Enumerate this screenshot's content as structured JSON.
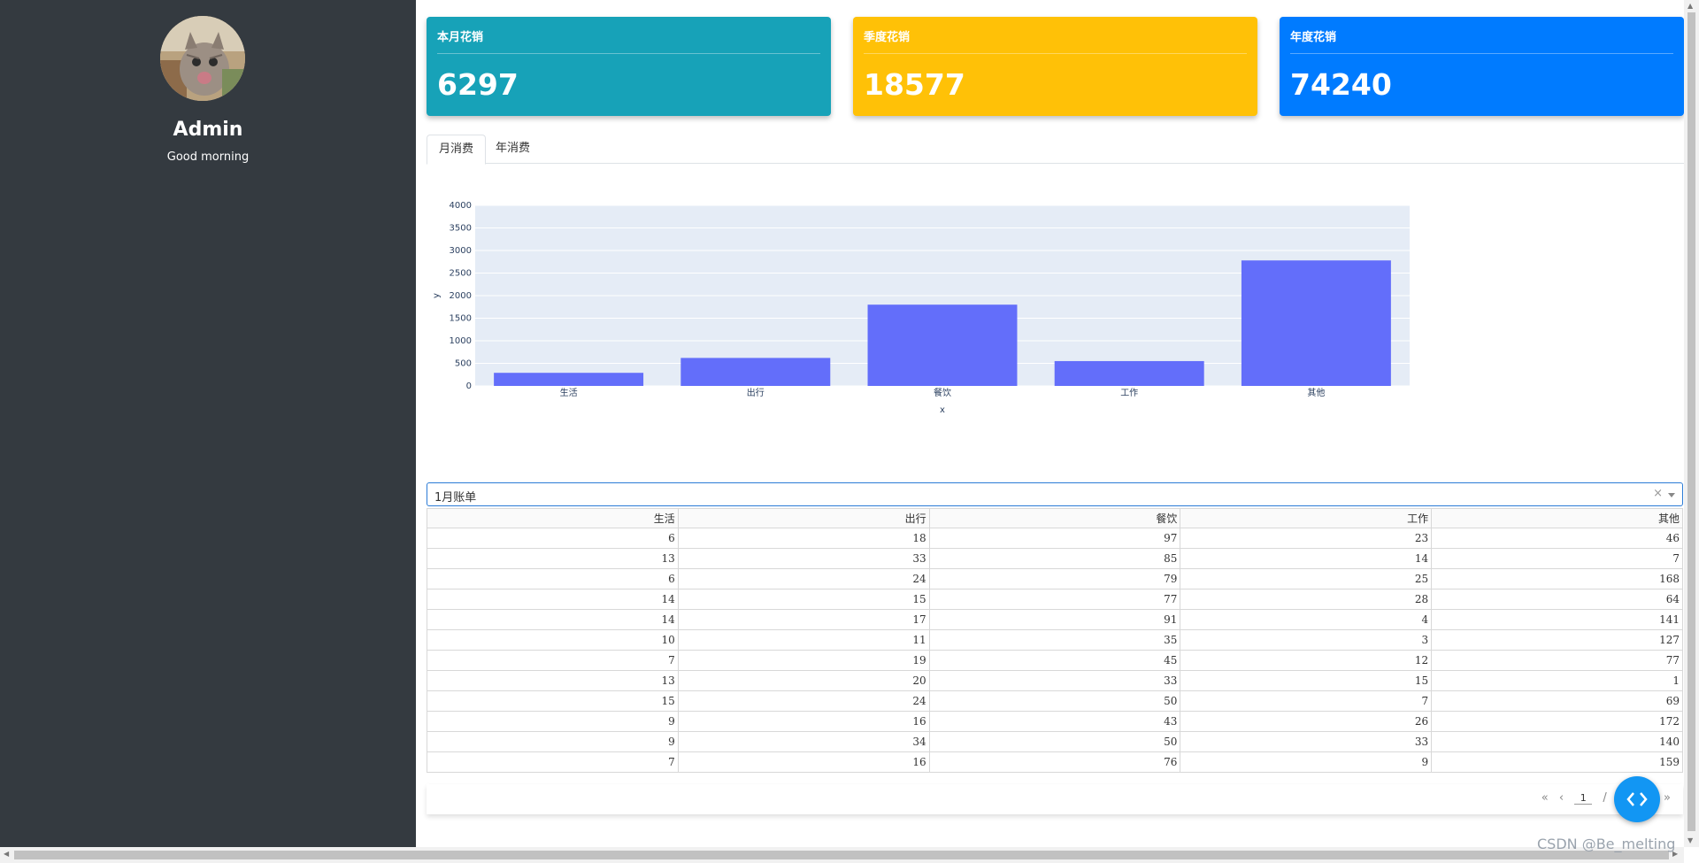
{
  "sidebar": {
    "user_name": "Admin",
    "greeting": "Good morning"
  },
  "cards": [
    {
      "title": "本月花销",
      "value": "6297",
      "color": "#17a2b8"
    },
    {
      "title": "季度花销",
      "value": "18577",
      "color": "#ffc107"
    },
    {
      "title": "年度花销",
      "value": "74240",
      "color": "#007bff"
    }
  ],
  "tabs": [
    {
      "label": "月消费",
      "active": true
    },
    {
      "label": "年消费",
      "active": false
    }
  ],
  "chart_data": {
    "type": "bar",
    "categories": [
      "生活",
      "出行",
      "餐饮",
      "工作",
      "其他"
    ],
    "values": [
      290,
      620,
      1800,
      550,
      2780
    ],
    "xlabel": "x",
    "ylabel": "y",
    "ylim": [
      0,
      4000
    ],
    "yticks": [
      0,
      500,
      1000,
      1500,
      2000,
      2500,
      3000,
      3500,
      4000
    ],
    "bar_color": "#636efa",
    "plot_bg": "#e5ecf6",
    "grid": true
  },
  "bill_select": {
    "value": "1月账单",
    "clear_symbol": "×"
  },
  "table": {
    "headers": [
      "生活",
      "出行",
      "餐饮",
      "工作",
      "其他"
    ],
    "rows": [
      [
        "6",
        "18",
        "97",
        "23",
        "46"
      ],
      [
        "13",
        "33",
        "85",
        "14",
        "7"
      ],
      [
        "6",
        "24",
        "79",
        "25",
        "168"
      ],
      [
        "14",
        "15",
        "77",
        "28",
        "64"
      ],
      [
        "14",
        "17",
        "91",
        "4",
        "141"
      ],
      [
        "10",
        "11",
        "35",
        "3",
        "127"
      ],
      [
        "7",
        "19",
        "45",
        "12",
        "77"
      ],
      [
        "13",
        "20",
        "33",
        "15",
        "1"
      ],
      [
        "15",
        "24",
        "50",
        "7",
        "69"
      ],
      [
        "9",
        "16",
        "43",
        "26",
        "172"
      ],
      [
        "9",
        "34",
        "50",
        "33",
        "140"
      ],
      [
        "7",
        "16",
        "76",
        "9",
        "159"
      ]
    ]
  },
  "pager": {
    "first": "«",
    "prev": "‹",
    "current_page": "1",
    "separator": "/",
    "last": "»"
  },
  "watermark": "CSDN @Be_melting"
}
